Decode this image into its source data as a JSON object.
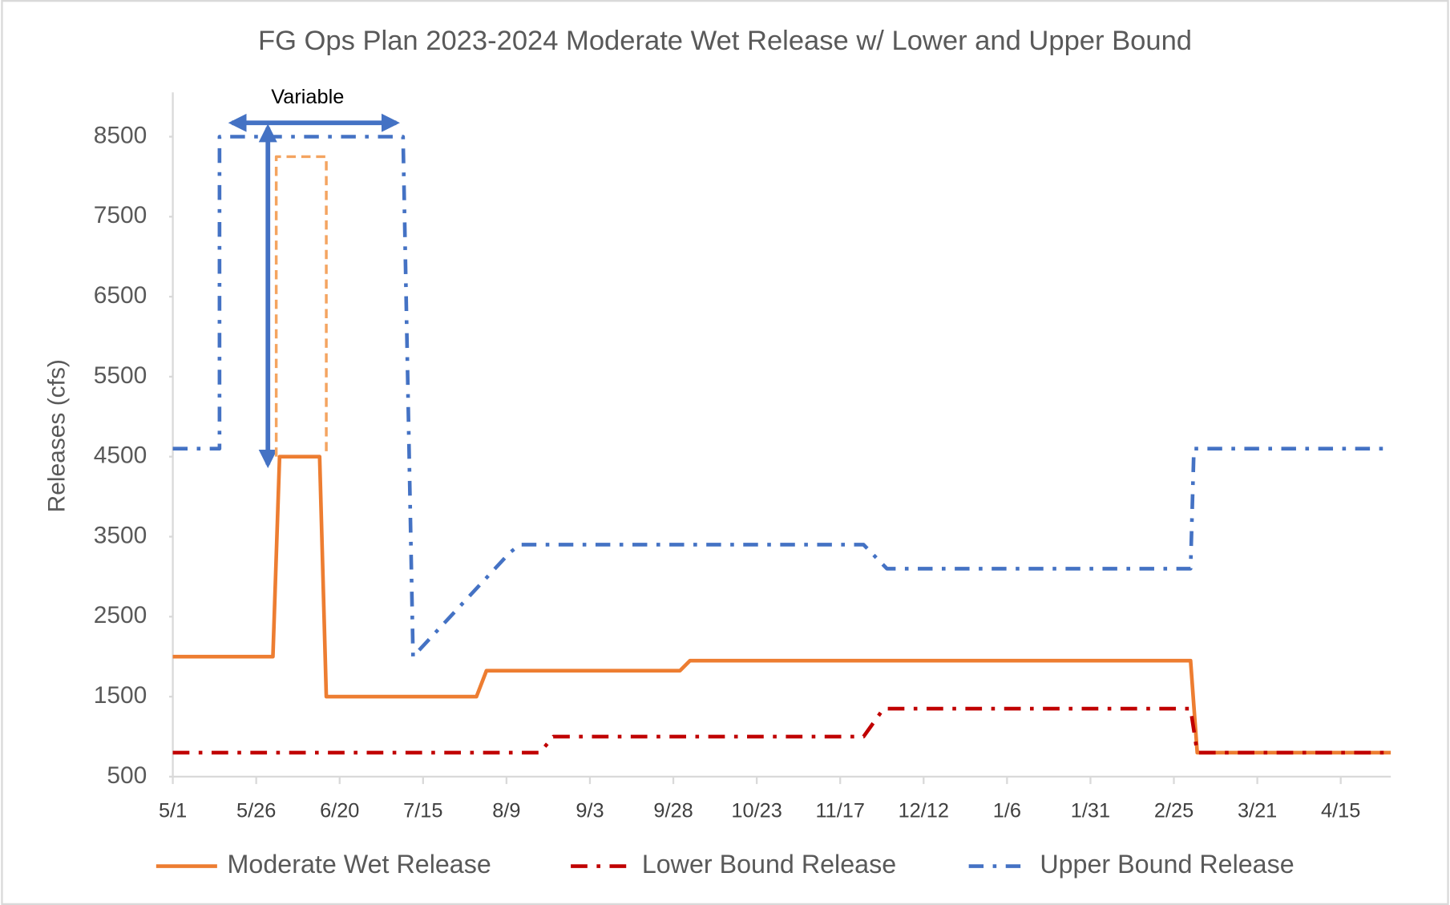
{
  "chart_data": {
    "type": "line",
    "title": "FG Ops Plan 2023-2024 Moderate Wet Release w/ Lower and Upper Bound",
    "y_label": "Releases (cfs)",
    "annotation": "Variable",
    "xlim": [
      "5/1",
      "4/30"
    ],
    "xticks": [
      "5/1",
      "5/26",
      "6/20",
      "7/15",
      "8/9",
      "9/3",
      "9/28",
      "10/23",
      "11/17",
      "12/12",
      "1/6",
      "1/31",
      "2/25",
      "3/21",
      "4/15"
    ],
    "ylim": [
      500,
      8500
    ],
    "yticks": [
      500,
      1500,
      2500,
      3500,
      4500,
      5500,
      6500,
      7500,
      8500
    ],
    "legend": "bottom",
    "series": [
      {
        "name": "Moderate Wet Release",
        "color": "#ed7d31",
        "dash": "solid",
        "x": [
          "5/1",
          "5/31",
          "6/2",
          "6/14",
          "6/16",
          "7/31",
          "8/3",
          "9/30",
          "10/3",
          "3/1",
          "3/3",
          "4/30"
        ],
        "values": [
          2000,
          2000,
          4500,
          4500,
          1500,
          1500,
          1825,
          1825,
          1950,
          1950,
          800,
          800
        ]
      },
      {
        "name": "Lower Bound Release",
        "color": "#c00000",
        "dash": "dashdot",
        "x": [
          "5/1",
          "8/19",
          "8/23",
          "11/24",
          "11/30",
          "3/1",
          "3/3",
          "4/30"
        ],
        "values": [
          800,
          800,
          1000,
          1000,
          1350,
          1350,
          800,
          800
        ]
      },
      {
        "name": "Upper Bound Release",
        "color": "#4472c4",
        "dash": "dashdotdot",
        "x": [
          "5/1",
          "5/15",
          "5/15",
          "7/9",
          "7/12",
          "8/10",
          "8/13",
          "11/24",
          "12/1",
          "3/1",
          "3/2",
          "4/30"
        ],
        "values": [
          4600,
          4600,
          8500,
          8500,
          2000,
          3300,
          3400,
          3400,
          3100,
          3100,
          4600,
          4600
        ]
      },
      {
        "color": "#f4a460",
        "dash": "dashed",
        "x": [
          "6/1",
          "6/1",
          "6/16",
          "6/16"
        ],
        "values": [
          4500,
          8250,
          8250,
          4500
        ]
      }
    ]
  }
}
